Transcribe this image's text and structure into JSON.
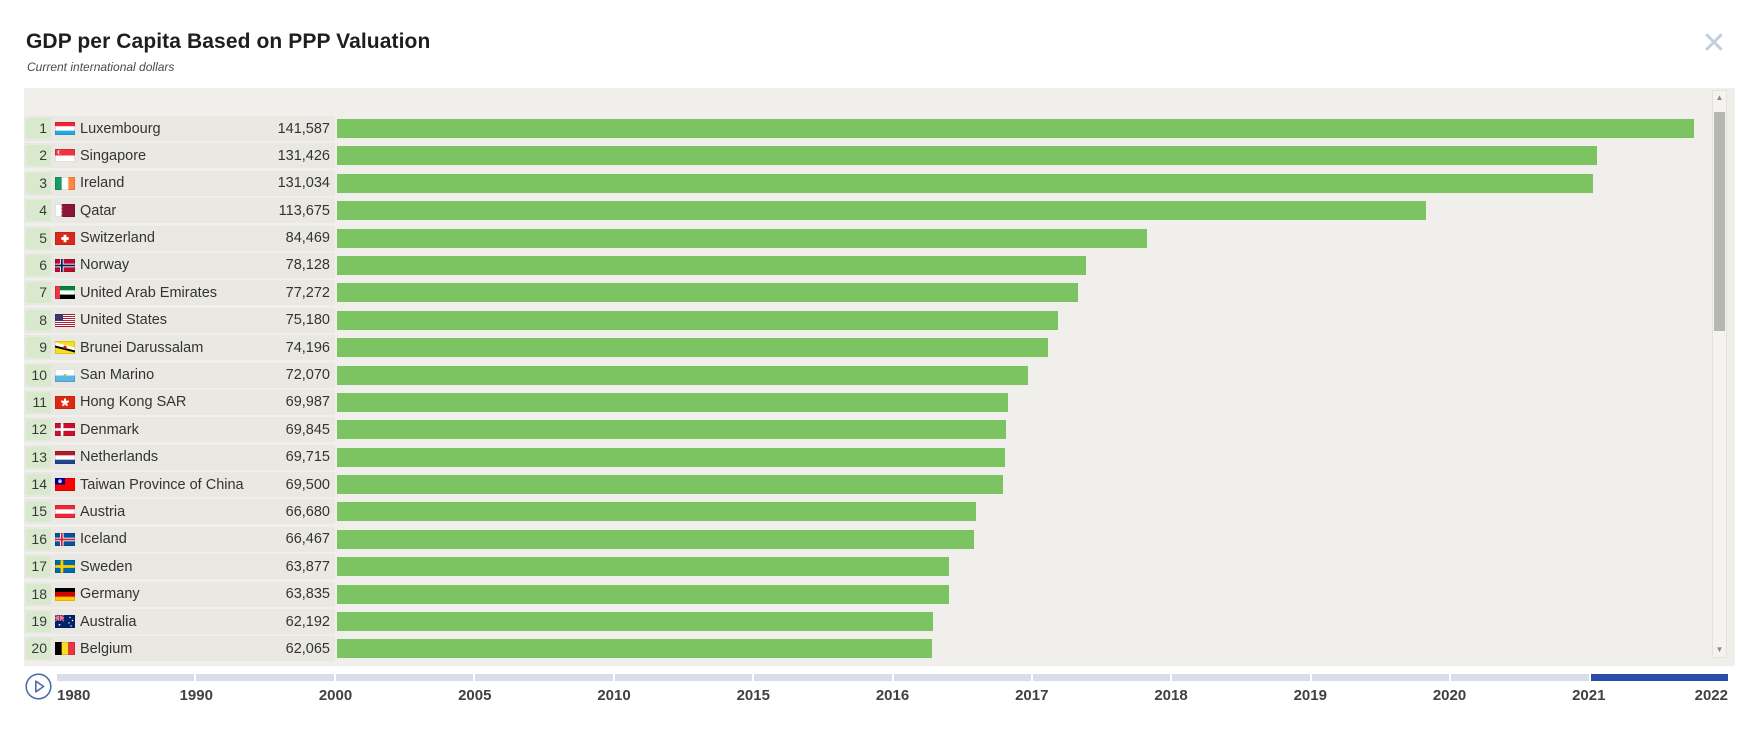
{
  "header": {
    "title": "GDP per Capita Based on PPP Valuation",
    "subtitle": "Current international dollars"
  },
  "icons": {
    "close": "✕",
    "scroll_up": "▲",
    "scroll_down": "▼",
    "play": "▶"
  },
  "chart_data": {
    "type": "bar",
    "orientation": "horizontal",
    "title": "GDP per Capita Based on PPP Valuation",
    "unit": "Current international dollars",
    "max_value": 141587,
    "rows": [
      {
        "rank": 1,
        "country": "Luxembourg",
        "flag": "luxembourg",
        "value": 141587,
        "value_label": "141,587"
      },
      {
        "rank": 2,
        "country": "Singapore",
        "flag": "singapore",
        "value": 131426,
        "value_label": "131,426"
      },
      {
        "rank": 3,
        "country": "Ireland",
        "flag": "ireland",
        "value": 131034,
        "value_label": "131,034"
      },
      {
        "rank": 4,
        "country": "Qatar",
        "flag": "qatar",
        "value": 113675,
        "value_label": "113,675"
      },
      {
        "rank": 5,
        "country": "Switzerland",
        "flag": "switzerland",
        "value": 84469,
        "value_label": "84,469"
      },
      {
        "rank": 6,
        "country": "Norway",
        "flag": "norway",
        "value": 78128,
        "value_label": "78,128"
      },
      {
        "rank": 7,
        "country": "United Arab Emirates",
        "flag": "uae",
        "value": 77272,
        "value_label": "77,272"
      },
      {
        "rank": 8,
        "country": "United States",
        "flag": "usa",
        "value": 75180,
        "value_label": "75,180"
      },
      {
        "rank": 9,
        "country": "Brunei Darussalam",
        "flag": "brunei",
        "value": 74196,
        "value_label": "74,196"
      },
      {
        "rank": 10,
        "country": "San Marino",
        "flag": "sanmarino",
        "value": 72070,
        "value_label": "72,070"
      },
      {
        "rank": 11,
        "country": "Hong Kong SAR",
        "flag": "hongkong",
        "value": 69987,
        "value_label": "69,987"
      },
      {
        "rank": 12,
        "country": "Denmark",
        "flag": "denmark",
        "value": 69845,
        "value_label": "69,845"
      },
      {
        "rank": 13,
        "country": "Netherlands",
        "flag": "netherlands",
        "value": 69715,
        "value_label": "69,715"
      },
      {
        "rank": 14,
        "country": "Taiwan Province of China",
        "flag": "taiwan",
        "value": 69500,
        "value_label": "69,500"
      },
      {
        "rank": 15,
        "country": "Austria",
        "flag": "austria",
        "value": 66680,
        "value_label": "66,680"
      },
      {
        "rank": 16,
        "country": "Iceland",
        "flag": "iceland",
        "value": 66467,
        "value_label": "66,467"
      },
      {
        "rank": 17,
        "country": "Sweden",
        "flag": "sweden",
        "value": 63877,
        "value_label": "63,877"
      },
      {
        "rank": 18,
        "country": "Germany",
        "flag": "germany",
        "value": 63835,
        "value_label": "63,835"
      },
      {
        "rank": 19,
        "country": "Australia",
        "flag": "australia",
        "value": 62192,
        "value_label": "62,192"
      },
      {
        "rank": 20,
        "country": "Belgium",
        "flag": "belgium",
        "value": 62065,
        "value_label": "62,065"
      }
    ]
  },
  "timeline": {
    "years": [
      "1980",
      "1990",
      "2000",
      "2005",
      "2010",
      "2015",
      "2016",
      "2017",
      "2018",
      "2019",
      "2020",
      "2021",
      "2022"
    ],
    "selected_year": "2022",
    "segment_count": 12,
    "active_segment_index": 11
  },
  "colors": {
    "bar_green": "#7cc362",
    "rank_badge": "#d9e9ce",
    "panel_bg": "#f0efeb",
    "label_col_bg": "#e9e8e2",
    "timeline_segment": "#d9dde9",
    "timeline_active": "#2a4da8",
    "accent_blue": "#4d6ea8"
  }
}
